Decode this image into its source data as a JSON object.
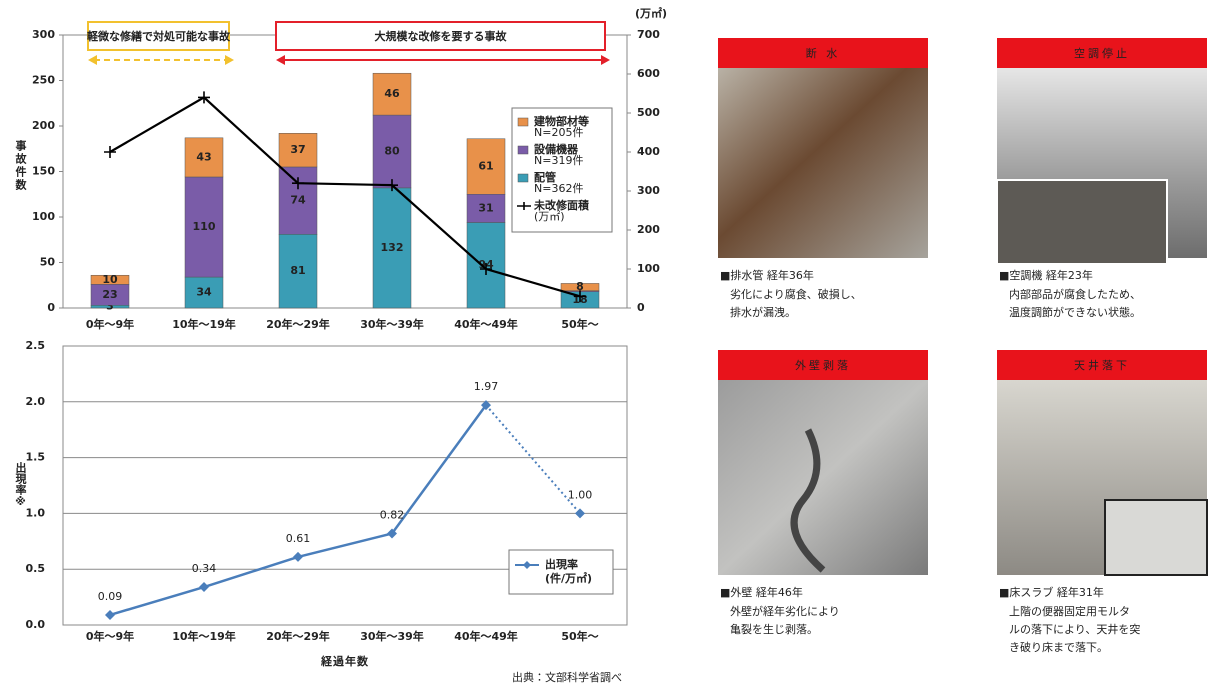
{
  "chart_data": [
    {
      "type": "bar",
      "stacked": true,
      "y_label": "事故件数",
      "y2_label": "(万㎡)",
      "categories": [
        "0年〜9年",
        "10年〜19年",
        "20年〜29年",
        "30年〜39年",
        "40年〜49年",
        "50年〜"
      ],
      "series": [
        {
          "name": "配管",
          "legend_sub": "N=362件",
          "color": "#3a9db5",
          "values": [
            3,
            34,
            81,
            132,
            94,
            18
          ]
        },
        {
          "name": "設備機器",
          "legend_sub": "N=319件",
          "color": "#7a5ca8",
          "values": [
            23,
            110,
            74,
            80,
            31,
            1
          ],
          "value_labels": [
            "23",
            "110",
            "74",
            "80",
            "31",
            null
          ]
        },
        {
          "name": "建物部材等",
          "legend_sub": "N=205件",
          "color": "#e8914a",
          "values": [
            10,
            43,
            37,
            46,
            61,
            8
          ]
        },
        {
          "name": "未改修面積",
          "legend_sub": "(万㎡)",
          "type": "line",
          "axis": "y2",
          "color": "#000000",
          "values": [
            400,
            540,
            320,
            315,
            100,
            30
          ]
        }
      ],
      "ylim": [
        0,
        300
      ],
      "yticks": [
        0,
        50,
        100,
        150,
        200,
        250,
        300
      ],
      "y2lim": [
        0,
        700
      ],
      "y2ticks": [
        0,
        100,
        200,
        300,
        400,
        500,
        600,
        700
      ],
      "grid": false,
      "legend": "right",
      "annotations": [
        {
          "text": "軽微な修繕で対処可能な事故",
          "color": "#f2c12e"
        },
        {
          "text": "大規模な改修を要する事故",
          "color": "#e3202a"
        }
      ]
    },
    {
      "type": "line",
      "y_label": "出現率※",
      "x_label": "経過年数",
      "categories": [
        "0年〜9年",
        "10年〜19年",
        "20年〜29年",
        "30年〜39年",
        "40年〜49年",
        "50年〜"
      ],
      "series": [
        {
          "name": "出現率",
          "legend_sub": "(件/万㎡)",
          "color": "#4a7ebb",
          "values": [
            0.09,
            0.34,
            0.61,
            0.82,
            1.97,
            1.0
          ],
          "value_labels": [
            "0.09",
            "0.34",
            "0.61",
            "0.82",
            "1.97",
            "1.00"
          ],
          "dotted_last_segment": true
        }
      ],
      "ylim": [
        0,
        2.5
      ],
      "yticks": [
        {
          "value": 0,
          "label": "0.0"
        },
        0.5,
        {
          "value": 1,
          "label": "1.0"
        },
        1.5,
        {
          "value": 2,
          "label": "2.0"
        },
        2.5
      ],
      "grid": true,
      "legend": "right",
      "source": "出典：文部科学省調べ"
    }
  ],
  "panels": [
    {
      "title": "断 水",
      "caption": "■排水管 経年36年",
      "lines": [
        "劣化により腐食、破損し、",
        "排水が漏洩。"
      ]
    },
    {
      "title": "空調停止",
      "caption": "■空調機 経年23年",
      "lines": [
        "内部部品が腐食したため、",
        "温度調節ができない状態。"
      ]
    },
    {
      "title": "外壁剥落",
      "caption": "■外壁 経年46年",
      "lines": [
        "外壁が経年劣化により",
        "亀裂を生じ剥落。"
      ]
    },
    {
      "title": "天井落下",
      "caption": "■床スラブ 経年31年",
      "lines": [
        "上階の便器固定用モルタ",
        "ルの落下により、天井を突",
        "き破り床まで落下。"
      ]
    }
  ]
}
